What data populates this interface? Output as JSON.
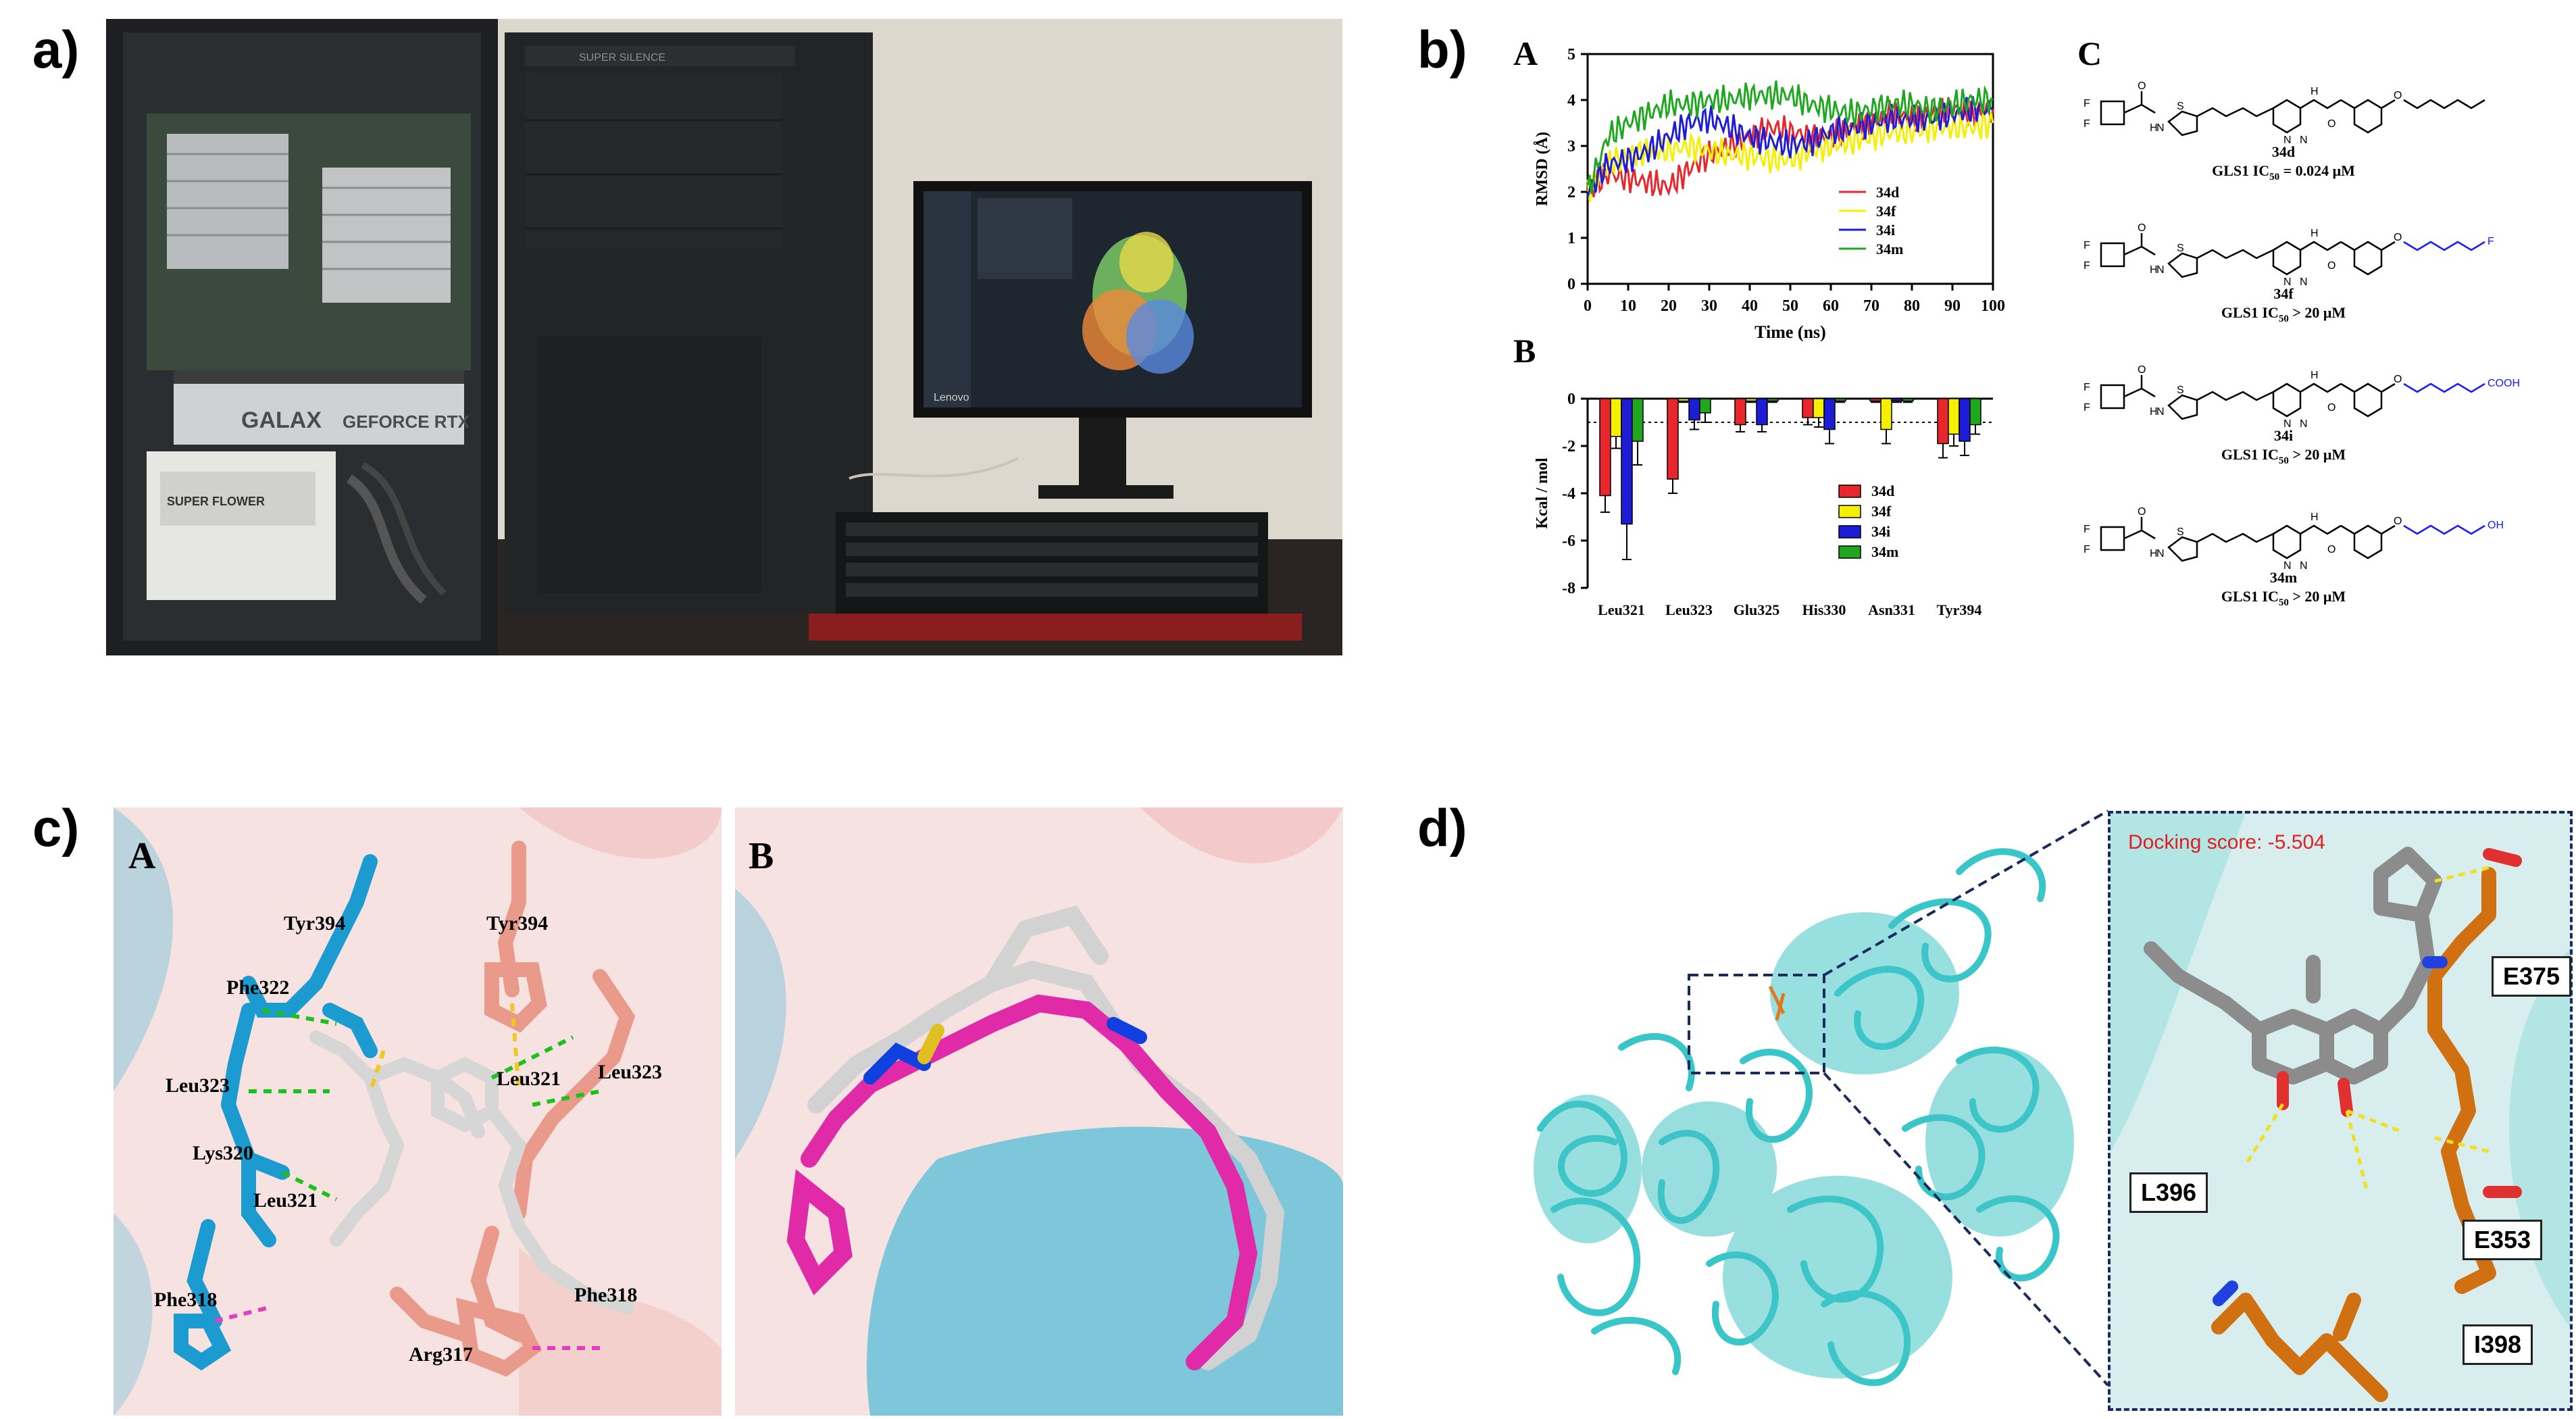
{
  "figure": {
    "panel_a": {
      "label": "a)",
      "photo": {
        "gpu_brand": "GALAX",
        "gpu_model": "GEFORCE RTX",
        "monitor_brand": "Lenovo",
        "psu_brand": "SUPER FLOWER",
        "case_badge": "SUPER SILENCE"
      }
    },
    "panel_b": {
      "label": "b)",
      "sub_a": "A",
      "sub_b": "B",
      "sub_c": "C",
      "rmsd_chart": {
        "type": "line",
        "ylabel": "RMSD (Å)",
        "xlabel": "Time (ns)",
        "xlim": [
          0,
          100
        ],
        "ylim": [
          0,
          5
        ],
        "xticks": [
          "0",
          "10",
          "20",
          "30",
          "40",
          "50",
          "60",
          "70",
          "80",
          "90",
          "100"
        ],
        "yticks": [
          "0",
          "1",
          "2",
          "3",
          "4",
          "5"
        ],
        "x": [
          0,
          5,
          10,
          15,
          20,
          25,
          30,
          35,
          40,
          45,
          50,
          55,
          60,
          65,
          70,
          75,
          80,
          85,
          90,
          95,
          100
        ],
        "series": [
          {
            "name": "34d",
            "color": "#e8262b",
            "values": [
              2.0,
              2.4,
              2.3,
              2.2,
              2.1,
              2.5,
              2.8,
              3.0,
              3.2,
              3.4,
              3.3,
              3.2,
              3.2,
              3.4,
              3.5,
              3.7,
              3.6,
              3.7,
              3.8,
              3.7,
              3.8
            ]
          },
          {
            "name": "34f",
            "color": "#f4f000",
            "values": [
              2.0,
              2.6,
              2.8,
              2.9,
              2.9,
              3.0,
              2.9,
              2.8,
              2.8,
              2.7,
              2.7,
              2.9,
              3.0,
              3.1,
              3.2,
              3.3,
              3.3,
              3.4,
              3.4,
              3.4,
              3.5
            ]
          },
          {
            "name": "34i",
            "color": "#1d1dd8",
            "values": [
              2.0,
              2.6,
              2.7,
              2.9,
              3.2,
              3.5,
              3.6,
              3.4,
              3.2,
              3.1,
              3.0,
              3.1,
              3.3,
              3.4,
              3.5,
              3.6,
              3.6,
              3.6,
              3.7,
              3.8,
              3.8
            ]
          },
          {
            "name": "34m",
            "color": "#1fa81f",
            "values": [
              2.0,
              3.2,
              3.5,
              3.7,
              3.9,
              3.9,
              4.0,
              4.0,
              4.1,
              4.1,
              4.1,
              3.9,
              3.8,
              3.7,
              3.8,
              3.9,
              3.9,
              3.8,
              3.9,
              4.0,
              4.0
            ]
          }
        ]
      },
      "energy_chart": {
        "type": "bar",
        "ylabel": "Kcal / mol",
        "ylim": [
          -8,
          0
        ],
        "yticks": [
          "0",
          "-2",
          "-4",
          "-6",
          "-8"
        ],
        "categories": [
          "Leu321",
          "Leu323",
          "Glu325",
          "His330",
          "Asn331",
          "Tyr394"
        ],
        "series": [
          {
            "name": "34d",
            "color": "#e8262b",
            "values": [
              -4.1,
              -3.4,
              -1.1,
              -0.8,
              -0.1,
              -1.9
            ],
            "errors": [
              0.7,
              0.6,
              0.3,
              0.3,
              0.05,
              0.6
            ]
          },
          {
            "name": "34f",
            "color": "#f4f000",
            "values": [
              -1.6,
              -0.1,
              -0.1,
              -0.8,
              -1.3,
              -1.5
            ],
            "errors": [
              0.5,
              0.05,
              0.05,
              0.4,
              0.6,
              0.5
            ]
          },
          {
            "name": "34i",
            "color": "#1d1dd8",
            "values": [
              -5.3,
              -0.9,
              -1.1,
              -1.3,
              -0.1,
              -1.8
            ],
            "errors": [
              1.5,
              0.4,
              0.3,
              0.6,
              0.05,
              0.6
            ]
          },
          {
            "name": "34m",
            "color": "#1fa81f",
            "values": [
              -1.8,
              -0.6,
              -0.1,
              -0.1,
              -0.1,
              -1.1
            ],
            "errors": [
              1.0,
              0.4,
              0.05,
              0.05,
              0.05,
              0.4
            ]
          }
        ],
        "reference_line": -1
      },
      "compounds": [
        {
          "name": "34d",
          "activity_prefix": "GLS1 IC",
          "activity_sub": "50",
          "activity_value": " = 0.024 μM",
          "tail": ""
        },
        {
          "name": "34f",
          "activity_prefix": "GLS1 IC",
          "activity_sub": "50",
          "activity_value": " > 20 μM",
          "tail": "F"
        },
        {
          "name": "34i",
          "activity_prefix": "GLS1 IC",
          "activity_sub": "50",
          "activity_value": " > 20 μM",
          "tail": "COOH"
        },
        {
          "name": "34m",
          "activity_prefix": "GLS1 IC",
          "activity_sub": "50",
          "activity_value": " > 20 μM",
          "tail": "OH"
        }
      ],
      "structure_atoms": {
        "F": "F",
        "N": "N",
        "H": "H",
        "S": "S",
        "O": "O"
      }
    },
    "panel_c": {
      "label": "c)",
      "sub_a": "A",
      "sub_b": "B",
      "residues_a": [
        "Tyr394",
        "Tyr394",
        "Phe322",
        "Leu323",
        "Leu321",
        "Leu323",
        "Lys320",
        "Leu321",
        "Phe318",
        "Phe318",
        "Arg317"
      ]
    },
    "panel_d": {
      "label": "d)",
      "docking_score": "Docking score: -5.504",
      "residues": [
        "E375",
        "L396",
        "E353",
        "I398"
      ]
    }
  }
}
